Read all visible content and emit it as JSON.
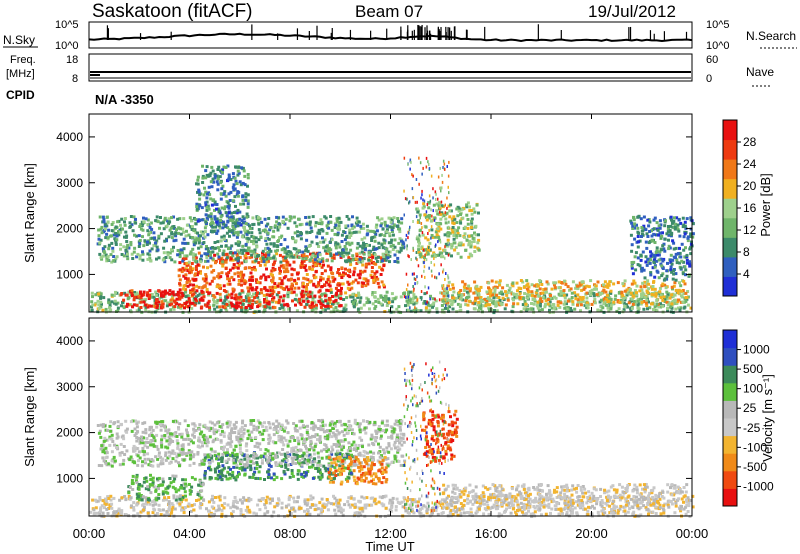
{
  "header": {
    "station": "Saskatoon (fitACF)",
    "beam": "Beam 07",
    "date": "19/Jul/2012"
  },
  "strips": {
    "nsky": {
      "label": "N.Sky",
      "ticks": [
        "10^5",
        "10^0"
      ]
    },
    "nsearch": {
      "label": "N.Search",
      "ticks": [
        "10^5",
        "10^0"
      ]
    },
    "freq": {
      "label_line1": "Freq.",
      "label_line2": "[MHz]",
      "ticks": [
        "18",
        "8"
      ]
    },
    "nave": {
      "label": "Nave",
      "ticks": [
        "60",
        "0"
      ]
    },
    "cpid": {
      "label": "CPID",
      "value": "N/A -3350"
    }
  },
  "axes": {
    "ylabel": "Slant Range [km]",
    "yticks": [
      "4000",
      "3000",
      "2000",
      "1000"
    ],
    "xlabel": "Time UT",
    "xticks": [
      "00:00",
      "04:00",
      "08:00",
      "12:00",
      "16:00",
      "20:00",
      "00:00"
    ]
  },
  "colors": {
    "power": [
      "#1f2fd6",
      "#2f5fbf",
      "#3c8a6a",
      "#6fb56a",
      "#9ed08c",
      "#f0b020",
      "#f07818",
      "#ee3a10",
      "#e81010"
    ],
    "velocity": [
      "#e81010",
      "#f04a10",
      "#f08a18",
      "#f2b430",
      "#c8c8c8",
      "#b8b8b8",
      "#5cc03c",
      "#3c8a5a",
      "#2f4fbf",
      "#1f2fd6"
    ]
  },
  "chart_data": [
    {
      "type": "heatmap",
      "title": "Power",
      "colorbar_label": "Power [dB]",
      "colorbar_ticks": [
        "28",
        "24",
        "20",
        "16",
        "12",
        "8",
        "4"
      ],
      "colorbar_range": [
        0,
        30
      ],
      "x_range_hours": [
        0,
        24
      ],
      "y_range_km": [
        180,
        4500
      ],
      "echo_regions": [
        {
          "t0": 0.0,
          "t1": 24.0,
          "r0": 200,
          "r1": 650,
          "level": 12
        },
        {
          "t0": 1.2,
          "t1": 10.0,
          "r0": 300,
          "r1": 700,
          "level": 27
        },
        {
          "t0": 3.5,
          "t1": 11.8,
          "r0": 700,
          "r1": 1500,
          "level": 24
        },
        {
          "t0": 0.3,
          "t1": 12.5,
          "r0": 1300,
          "r1": 2300,
          "level": 10
        },
        {
          "t0": 4.2,
          "t1": 6.3,
          "r0": 2100,
          "r1": 3400,
          "level": 8
        },
        {
          "t0": 13.0,
          "t1": 15.5,
          "r0": 1400,
          "r1": 2600,
          "level": 14
        },
        {
          "t0": 14.0,
          "t1": 23.8,
          "r0": 350,
          "r1": 900,
          "level": 18
        },
        {
          "t0": 21.5,
          "t1": 24.0,
          "r0": 900,
          "r1": 2300,
          "level": 7
        }
      ]
    },
    {
      "type": "heatmap",
      "title": "Velocity",
      "colorbar_label": "Velocity [m s⁻¹]",
      "colorbar_ticks": [
        "1000",
        "500",
        "100",
        "25",
        "-25",
        "-100",
        "-500",
        "-1000"
      ],
      "x_range_hours": [
        0,
        24
      ],
      "y_range_km": [
        180,
        4500
      ],
      "echo_regions": [
        {
          "t0": 0.0,
          "t1": 24.0,
          "r0": 200,
          "r1": 650,
          "level": 4
        },
        {
          "t0": 1.5,
          "t1": 4.5,
          "r0": 550,
          "r1": 1100,
          "level": 6
        },
        {
          "t0": 4.5,
          "t1": 10.5,
          "r0": 1000,
          "r1": 1600,
          "level": 7
        },
        {
          "t0": 0.3,
          "t1": 12.5,
          "r0": 1300,
          "r1": 2300,
          "level": 5
        },
        {
          "t0": 9.5,
          "t1": 11.8,
          "r0": 900,
          "r1": 1500,
          "level": 2
        },
        {
          "t0": 13.2,
          "t1": 14.6,
          "r0": 1400,
          "r1": 2500,
          "level": 1
        },
        {
          "t0": 14.0,
          "t1": 23.8,
          "r0": 350,
          "r1": 900,
          "level": 4
        }
      ]
    }
  ]
}
